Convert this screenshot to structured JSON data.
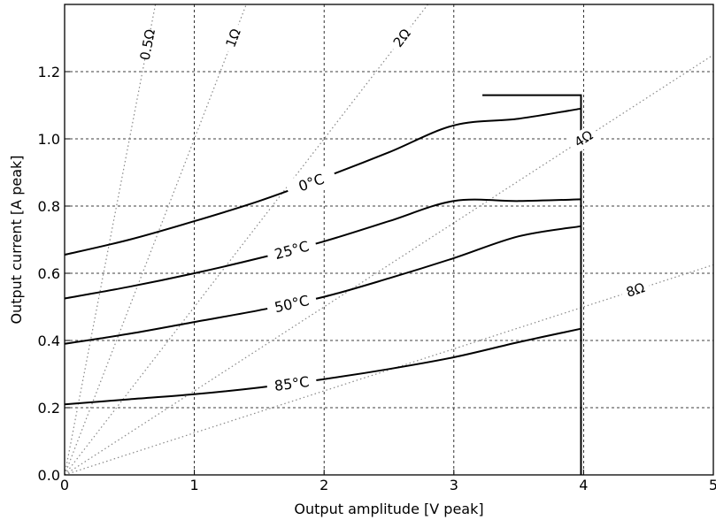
{
  "chart_data": {
    "type": "line",
    "title": "",
    "xlabel": "Output amplitude [V peak]",
    "ylabel": "Output current [A peak]",
    "xlim": [
      0,
      5
    ],
    "ylim": [
      0,
      1.4
    ],
    "x_ticks": [
      "0",
      "1",
      "2",
      "3",
      "4",
      "5"
    ],
    "y_ticks": [
      "0.0",
      "0.2",
      "0.4",
      "0.6",
      "0.8",
      "1.0",
      "1.2"
    ],
    "grid": true,
    "grid_style": "dashed",
    "series": [
      {
        "name": "0°C",
        "x": [
          0,
          0.5,
          1.0,
          1.5,
          2.0,
          2.5,
          3.0,
          3.5,
          3.98
        ],
        "y": [
          0.655,
          0.7,
          0.755,
          0.815,
          0.885,
          0.96,
          1.04,
          1.06,
          1.09
        ]
      },
      {
        "name": "25°C",
        "x": [
          0,
          0.5,
          1.0,
          1.5,
          2.0,
          2.5,
          3.0,
          3.5,
          3.98
        ],
        "y": [
          0.525,
          0.56,
          0.6,
          0.645,
          0.695,
          0.755,
          0.815,
          0.815,
          0.82
        ]
      },
      {
        "name": "50°C",
        "x": [
          0,
          0.5,
          1.0,
          1.5,
          2.0,
          2.5,
          3.0,
          3.5,
          3.98
        ],
        "y": [
          0.39,
          0.42,
          0.455,
          0.49,
          0.53,
          0.585,
          0.645,
          0.71,
          0.74
        ]
      },
      {
        "name": "85°C",
        "x": [
          0,
          0.5,
          1.0,
          1.5,
          2.0,
          2.5,
          3.0,
          3.5,
          3.98
        ],
        "y": [
          0.21,
          0.225,
          0.24,
          0.26,
          0.285,
          0.315,
          0.35,
          0.395,
          0.435
        ]
      }
    ],
    "limit_line": {
      "x": [
        3.22,
        3.98,
        3.98
      ],
      "y": [
        1.13,
        1.13,
        0.0
      ]
    },
    "load_lines": [
      {
        "label": "0.5Ω",
        "ohms": 0.5
      },
      {
        "label": "1Ω",
        "ohms": 1
      },
      {
        "label": "2Ω",
        "ohms": 2
      },
      {
        "label": "4Ω",
        "ohms": 4
      },
      {
        "label": "8Ω",
        "ohms": 8
      }
    ],
    "legend": "none"
  }
}
